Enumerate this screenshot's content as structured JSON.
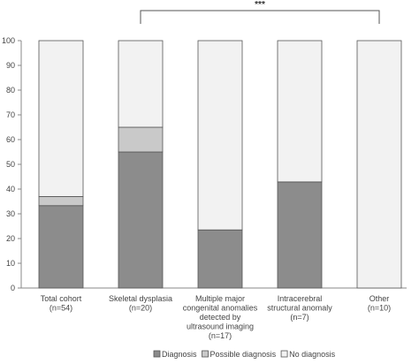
{
  "chart_data": {
    "type": "bar",
    "stacked": true,
    "categories": [
      [
        "Total cohort",
        "(n=54)"
      ],
      [
        "Skeletal dysplasia",
        "(n=20)"
      ],
      [
        "Multiple major",
        "congenital anomalies",
        "detected by",
        "ultrasound imaging",
        "(n=17)"
      ],
      [
        "Intracerebral",
        "structural anomaly",
        "(n=7)"
      ],
      [
        "Other",
        "(n=10)"
      ]
    ],
    "series": [
      {
        "name": "Diagnosis",
        "color": "#8c8c8c",
        "values": [
          33.3,
          55.0,
          23.5,
          42.9,
          0.0
        ]
      },
      {
        "name": "Possible diagnosis",
        "color": "#c9c9c9",
        "values": [
          3.7,
          10.0,
          0.0,
          0.0,
          0.0
        ]
      },
      {
        "name": "No diagnosis",
        "color": "#f2f2f2",
        "values": [
          63.0,
          35.0,
          76.5,
          57.1,
          100.0
        ]
      }
    ],
    "ylim": [
      0,
      100
    ],
    "yticks": [
      0,
      10,
      20,
      30,
      40,
      50,
      60,
      70,
      80,
      90,
      100
    ],
    "legend_position": "bottom",
    "annotation": {
      "text": "***",
      "from_category": 1,
      "to_category": 4
    }
  }
}
